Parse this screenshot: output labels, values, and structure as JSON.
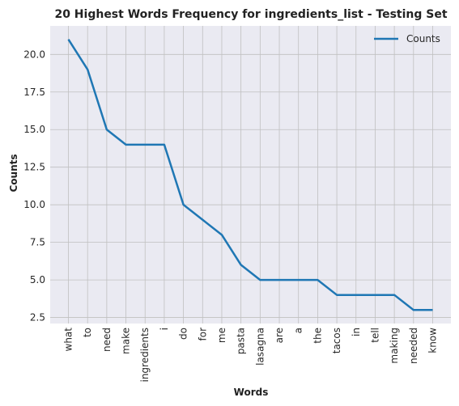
{
  "chart_data": {
    "type": "line",
    "title": "20 Highest Words Frequency for ingredients_list - Testing Set",
    "xlabel": "Words",
    "ylabel": "Counts",
    "categories": [
      "what",
      "to",
      "need",
      "make",
      "ingredients",
      "i",
      "do",
      "for",
      "me",
      "pasta",
      "lasagna",
      "are",
      "a",
      "the",
      "tacos",
      "in",
      "tell",
      "making",
      "needed",
      "know"
    ],
    "series": [
      {
        "name": "Counts",
        "values": [
          21,
          19,
          15,
          14,
          14,
          14,
          10,
          9,
          8,
          6,
          5,
          5,
          5,
          5,
          4,
          4,
          4,
          4,
          3,
          3
        ]
      }
    ],
    "y_ticks": [
      2.5,
      5.0,
      7.5,
      10.0,
      12.5,
      15.0,
      17.5,
      20.0
    ],
    "y_tick_labels": [
      "2.5",
      "5.0",
      "7.5",
      "10.0",
      "12.5",
      "15.0",
      "17.5",
      "20.0"
    ],
    "ylim": [
      2.1,
      21.9
    ],
    "grid": true,
    "legend_position": "top-right",
    "colors": {
      "line": "#1f77b4",
      "plot_background": "#eaeaf2",
      "grid": "#c0c0c0",
      "text": "#262626"
    }
  }
}
